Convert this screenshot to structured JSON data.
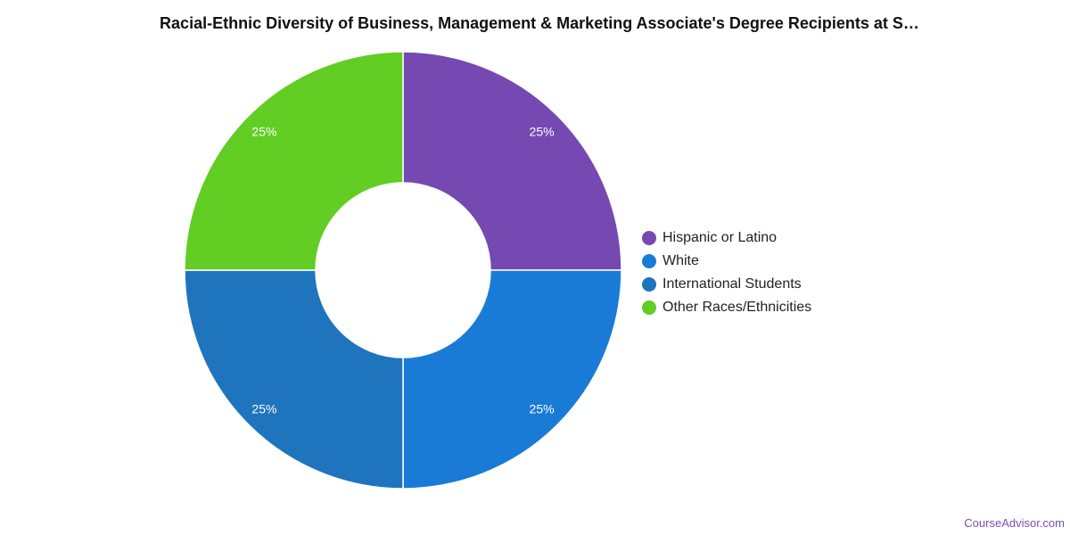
{
  "chart_data": {
    "type": "pie",
    "title": "Racial-Ethnic Diversity of Business, Management & Marketing Associate's Degree Recipients at S…",
    "categories": [
      "Hispanic or Latino",
      "White",
      "International Students",
      "Other Races/Ethnicities"
    ],
    "values": [
      25,
      25,
      25,
      25
    ],
    "labels": [
      "25%",
      "25%",
      "25%",
      "25%"
    ],
    "colors": [
      "#7549b1",
      "#1a7bd6",
      "#1f74be",
      "#62cd23"
    ],
    "donut": true,
    "legend_position": "right"
  },
  "footer": {
    "source": "CourseAdvisor.com"
  }
}
